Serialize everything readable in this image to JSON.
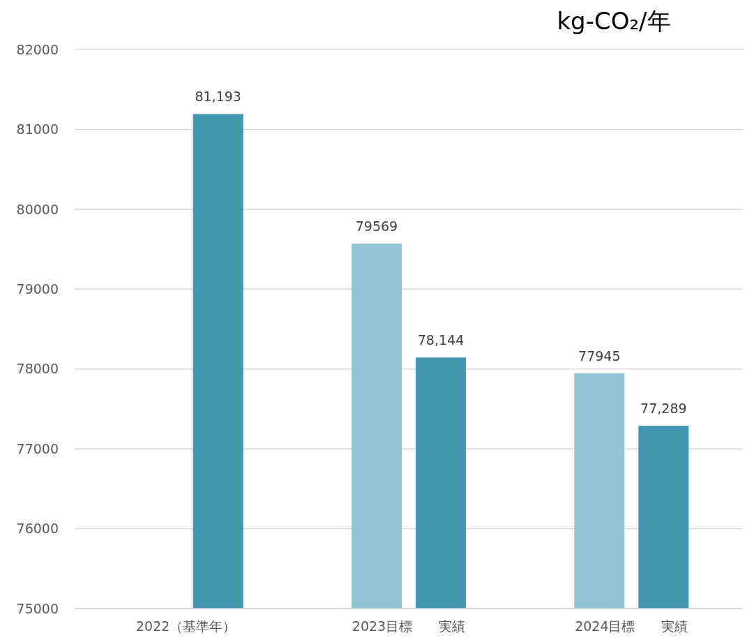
{
  "chart_data": {
    "type": "bar",
    "ylabel": "kg-CO₂/年",
    "categories": [
      "2022（基準年）",
      "2023目標　　実績",
      "2024目標　　実績"
    ],
    "series": [
      {
        "color": "#93c3d3",
        "values": [
          null,
          79569,
          77945
        ],
        "value_labels": [
          null,
          "79569",
          "77945"
        ]
      },
      {
        "color": "#4298b0",
        "values": [
          81193,
          78144,
          77289
        ],
        "value_labels": [
          "81,193",
          "78,144",
          "77,289"
        ]
      }
    ],
    "ylim": [
      75000,
      82000
    ],
    "yticks": [
      75000,
      76000,
      77000,
      78000,
      79000,
      80000,
      81000,
      82000
    ],
    "grid": "y"
  }
}
